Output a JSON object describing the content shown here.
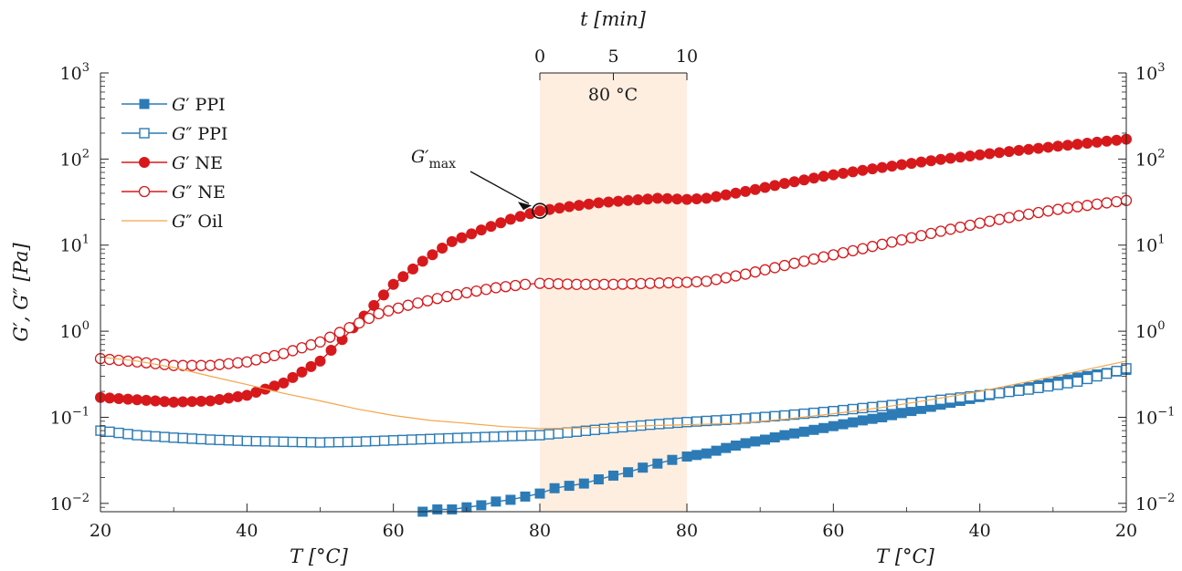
{
  "chart_data": {
    "type": "line",
    "y_scale": "log",
    "ylim": [
      0.008,
      1000
    ],
    "grid": false,
    "legend_position": "top-left",
    "axes": {
      "y_label": "G′, G″ [Pa]",
      "y_ticks": [
        {
          "value": 0.01,
          "base": "10",
          "exp": "−2"
        },
        {
          "value": 0.1,
          "base": "10",
          "exp": "−1"
        },
        {
          "value": 1,
          "base": "10",
          "exp": "0"
        },
        {
          "value": 10,
          "base": "10",
          "exp": "1"
        },
        {
          "value": 100,
          "base": "10",
          "exp": "2"
        },
        {
          "value": 1000,
          "base": "10",
          "exp": "3"
        }
      ],
      "x_bottom_label_left": "T [°C]",
      "x_bottom_label_right": "T [°C]",
      "x_bottom_ticks": [
        "20",
        "40",
        "60",
        "80",
        "80",
        "60",
        "40",
        "20"
      ],
      "x_top_label": "t [min]",
      "x_top_ticks": [
        "0",
        "5",
        "10"
      ]
    },
    "phases": [
      {
        "name": "heating",
        "T_range": [
          20,
          80
        ]
      },
      {
        "name": "hold",
        "t_range_min": [
          0,
          10
        ],
        "T": 80,
        "label": "80 °C"
      },
      {
        "name": "cooling",
        "T_range": [
          80,
          20
        ]
      }
    ],
    "annotation": {
      "label_base": "G′",
      "label_sub": "max",
      "T": 80,
      "value": 25
    },
    "series": [
      {
        "name": "G′ PPI",
        "marker": "filled-square",
        "color": "#2c7bb6",
        "points": [
          [
            64,
            0.008
          ],
          [
            66,
            0.0085
          ],
          [
            68,
            0.0085
          ],
          [
            70,
            0.009
          ],
          [
            72,
            0.0095
          ],
          [
            74,
            0.0105
          ],
          [
            76,
            0.011
          ],
          [
            78,
            0.012
          ],
          [
            80,
            0.013
          ],
          [
            82,
            0.015
          ],
          [
            84,
            0.016
          ],
          [
            86,
            0.017
          ],
          [
            88,
            0.019
          ],
          [
            90,
            0.021
          ],
          [
            92,
            0.023
          ],
          [
            94,
            0.026
          ],
          [
            96,
            0.029
          ],
          [
            98,
            0.032
          ],
          [
            100,
            0.035
          ],
          [
            102,
            0.038
          ],
          [
            104,
            0.044
          ],
          [
            106,
            0.05
          ],
          [
            108,
            0.055
          ],
          [
            110,
            0.062
          ],
          [
            112,
            0.068
          ],
          [
            114,
            0.075
          ],
          [
            116,
            0.083
          ],
          [
            118,
            0.092
          ],
          [
            120,
            0.1
          ],
          [
            122,
            0.112
          ],
          [
            124,
            0.125
          ],
          [
            126,
            0.14
          ],
          [
            128,
            0.155
          ],
          [
            130,
            0.172
          ],
          [
            132,
            0.19
          ],
          [
            134,
            0.212
          ],
          [
            136,
            0.235
          ],
          [
            138,
            0.26
          ],
          [
            140,
            0.29
          ],
          [
            142,
            0.315
          ],
          [
            144,
            0.34
          ],
          [
            145,
            0.355
          ]
        ]
      },
      {
        "name": "G″ PPI",
        "marker": "open-square",
        "color": "#2c7bb6",
        "points": [
          [
            20,
            0.07
          ],
          [
            25,
            0.062
          ],
          [
            30,
            0.058
          ],
          [
            35,
            0.055
          ],
          [
            40,
            0.053
          ],
          [
            45,
            0.052
          ],
          [
            50,
            0.051
          ],
          [
            55,
            0.052
          ],
          [
            60,
            0.054
          ],
          [
            65,
            0.056
          ],
          [
            70,
            0.058
          ],
          [
            75,
            0.06
          ],
          [
            80,
            0.062
          ],
          [
            85,
            0.068
          ],
          [
            90,
            0.075
          ],
          [
            95,
            0.082
          ],
          [
            100,
            0.088
          ],
          [
            105,
            0.095
          ],
          [
            110,
            0.105
          ],
          [
            115,
            0.118
          ],
          [
            120,
            0.135
          ],
          [
            125,
            0.155
          ],
          [
            130,
            0.18
          ],
          [
            135,
            0.21
          ],
          [
            140,
            0.26
          ],
          [
            145,
            0.37
          ]
        ]
      },
      {
        "name": "G′ NE",
        "marker": "filled-circle",
        "color": "#d7191c",
        "points": [
          [
            20,
            0.17
          ],
          [
            25,
            0.16
          ],
          [
            30,
            0.15
          ],
          [
            35,
            0.155
          ],
          [
            40,
            0.18
          ],
          [
            45,
            0.25
          ],
          [
            50,
            0.45
          ],
          [
            53,
            0.8
          ],
          [
            56,
            1.5
          ],
          [
            60,
            3.5
          ],
          [
            64,
            6.5
          ],
          [
            68,
            11
          ],
          [
            72,
            15
          ],
          [
            76,
            20
          ],
          [
            80,
            25
          ],
          [
            84,
            28
          ],
          [
            88,
            31
          ],
          [
            92,
            33
          ],
          [
            96,
            35
          ],
          [
            100,
            34
          ],
          [
            102,
            35
          ],
          [
            106,
            42
          ],
          [
            110,
            52
          ],
          [
            114,
            63
          ],
          [
            118,
            74
          ],
          [
            122,
            86
          ],
          [
            126,
            99
          ],
          [
            130,
            112
          ],
          [
            134,
            126
          ],
          [
            138,
            141
          ],
          [
            142,
            157
          ],
          [
            145,
            170
          ]
        ]
      },
      {
        "name": "G″ NE",
        "marker": "open-circle",
        "color": "#d7191c",
        "points": [
          [
            20,
            0.48
          ],
          [
            25,
            0.44
          ],
          [
            30,
            0.4
          ],
          [
            35,
            0.4
          ],
          [
            40,
            0.44
          ],
          [
            45,
            0.55
          ],
          [
            50,
            0.75
          ],
          [
            54,
            1.1
          ],
          [
            58,
            1.6
          ],
          [
            62,
            2.0
          ],
          [
            66,
            2.4
          ],
          [
            70,
            2.8
          ],
          [
            74,
            3.2
          ],
          [
            78,
            3.5
          ],
          [
            80,
            3.6
          ],
          [
            85,
            3.5
          ],
          [
            90,
            3.5
          ],
          [
            95,
            3.6
          ],
          [
            100,
            3.7
          ],
          [
            102,
            3.8
          ],
          [
            106,
            4.6
          ],
          [
            110,
            5.8
          ],
          [
            114,
            7.3
          ],
          [
            118,
            9.1
          ],
          [
            122,
            11.5
          ],
          [
            126,
            14.5
          ],
          [
            130,
            18
          ],
          [
            134,
            22
          ],
          [
            138,
            26
          ],
          [
            142,
            30
          ],
          [
            145,
            33
          ]
        ]
      },
      {
        "name": "G″ Oil",
        "marker": "none",
        "color": "#f5a54a",
        "points": [
          [
            20,
            0.5
          ],
          [
            25,
            0.45
          ],
          [
            30,
            0.38
          ],
          [
            35,
            0.3
          ],
          [
            40,
            0.24
          ],
          [
            45,
            0.19
          ],
          [
            50,
            0.155
          ],
          [
            55,
            0.125
          ],
          [
            60,
            0.105
          ],
          [
            65,
            0.092
          ],
          [
            70,
            0.085
          ],
          [
            75,
            0.078
          ],
          [
            80,
            0.074
          ],
          [
            85,
            0.075
          ],
          [
            90,
            0.077
          ],
          [
            95,
            0.08
          ],
          [
            100,
            0.082
          ],
          [
            105,
            0.085
          ],
          [
            110,
            0.095
          ],
          [
            115,
            0.11
          ],
          [
            120,
            0.13
          ],
          [
            125,
            0.16
          ],
          [
            130,
            0.2
          ],
          [
            135,
            0.26
          ],
          [
            140,
            0.34
          ],
          [
            145,
            0.45
          ]
        ]
      }
    ]
  },
  "legend_items": [
    {
      "base": "G",
      "prime": "′",
      "suffix": " PPI"
    },
    {
      "base": "G",
      "prime": "″",
      "suffix": " PPI"
    },
    {
      "base": "G",
      "prime": "′",
      "suffix": " NE"
    },
    {
      "base": "G",
      "prime": "″",
      "suffix": " NE"
    },
    {
      "base": "G",
      "prime": "″",
      "suffix": " Oil"
    }
  ],
  "hold_label": "80 °C"
}
